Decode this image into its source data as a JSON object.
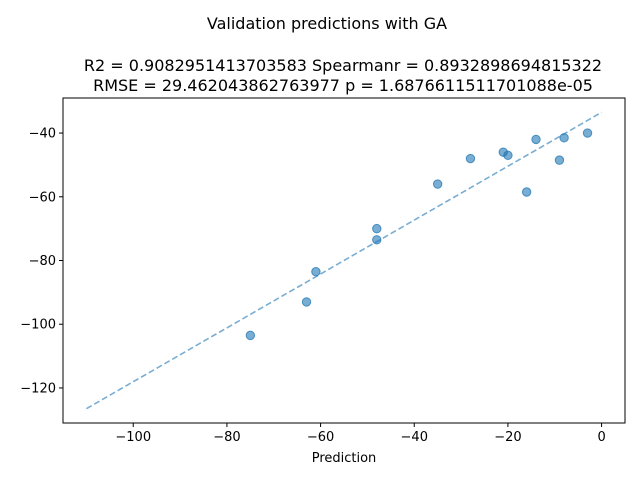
{
  "figure": {
    "suptitle": "Validation predictions with GA"
  },
  "chart_data": {
    "type": "scatter",
    "title_line1": "R2 = 0.9082951413703583 Spearmanr = 0.8932898694815322",
    "title_line2": "RMSE = 29.462043862763977 p = 1.6876611511701088e-05",
    "xlabel": "Prediction",
    "ylabel": "",
    "xlim": [
      -115,
      5
    ],
    "ylim": [
      -131,
      -29
    ],
    "xticks": [
      -100,
      -80,
      -60,
      -40,
      -20,
      0
    ],
    "xtick_labels": [
      "−100",
      "−80",
      "−60",
      "−40",
      "−20",
      "0"
    ],
    "yticks": [
      -120,
      -100,
      -80,
      -60,
      -40
    ],
    "ytick_labels": [
      "−120",
      "−100",
      "−80",
      "−60",
      "−40"
    ],
    "grid": false,
    "points": {
      "color": "#1f77b4",
      "x": [
        -75,
        -63,
        -61,
        -48,
        -48,
        -35,
        -28,
        -21,
        -20,
        -16,
        -14,
        -9,
        -8,
        -3
      ],
      "y": [
        -103.5,
        -93,
        -83.5,
        -73.5,
        -70,
        -56,
        -48,
        -46,
        -47,
        -58.5,
        -42,
        -48.5,
        -41.5,
        -40
      ]
    },
    "fit_line": {
      "style": "dashed",
      "color": "#1f77b4",
      "x": [
        -110,
        0
      ],
      "y": [
        -126.5,
        -33.5
      ]
    }
  }
}
